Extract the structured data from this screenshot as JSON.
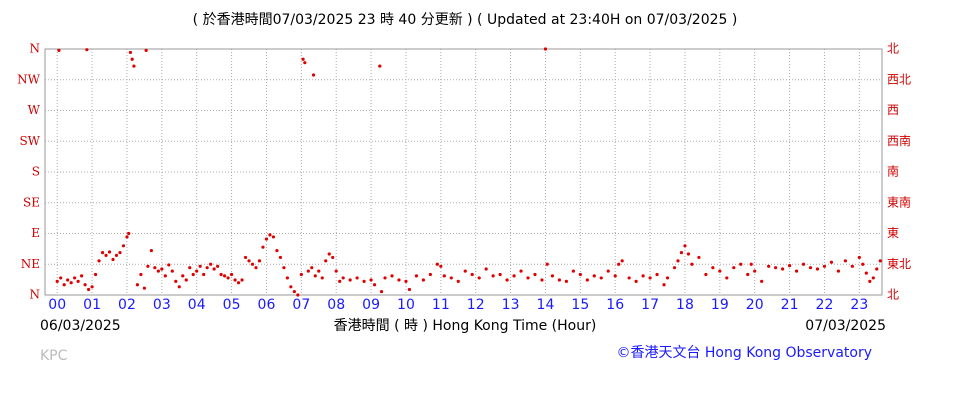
{
  "chart_data": {
    "type": "scatter",
    "title": "( 於香港時間07/03/2025 23 時 40 分更新 ) ( Updated at 23:40H on 07/03/2025 )",
    "x_label": "香港時間 ( 時 )  Hong Kong Time (Hour)",
    "date_start": "06/03/2025",
    "date_end": "07/03/2025",
    "credit": "KPC",
    "source": "©香港天文台 Hong Kong Observatory",
    "xlim": [
      -0.35,
      23.65
    ],
    "ylim": [
      0,
      360
    ],
    "y2lim": [
      0,
      360
    ],
    "grid": true,
    "xticks": [
      {
        "value": 0,
        "label": "00"
      },
      {
        "value": 1,
        "label": "01"
      },
      {
        "value": 2,
        "label": "02"
      },
      {
        "value": 3,
        "label": "03"
      },
      {
        "value": 4,
        "label": "04"
      },
      {
        "value": 5,
        "label": "05"
      },
      {
        "value": 6,
        "label": "06"
      },
      {
        "value": 7,
        "label": "07"
      },
      {
        "value": 8,
        "label": "08"
      },
      {
        "value": 9,
        "label": "09"
      },
      {
        "value": 10,
        "label": "10"
      },
      {
        "value": 11,
        "label": "11"
      },
      {
        "value": 12,
        "label": "12"
      },
      {
        "value": 13,
        "label": "13"
      },
      {
        "value": 14,
        "label": "14"
      },
      {
        "value": 15,
        "label": "15"
      },
      {
        "value": 16,
        "label": "16"
      },
      {
        "value": 17,
        "label": "17"
      },
      {
        "value": 18,
        "label": "18"
      },
      {
        "value": 19,
        "label": "19"
      },
      {
        "value": 20,
        "label": "20"
      },
      {
        "value": 21,
        "label": "21"
      },
      {
        "value": 22,
        "label": "22"
      },
      {
        "value": 23,
        "label": "23"
      }
    ],
    "yticks": [
      {
        "value": 0,
        "label": "N"
      },
      {
        "value": 45,
        "label": "NE"
      },
      {
        "value": 90,
        "label": "E"
      },
      {
        "value": 135,
        "label": "SE"
      },
      {
        "value": 180,
        "label": "S"
      },
      {
        "value": 225,
        "label": "SW"
      },
      {
        "value": 270,
        "label": "W"
      },
      {
        "value": 315,
        "label": "NW"
      },
      {
        "value": 360,
        "label": "N"
      }
    ],
    "y2ticks": [
      {
        "value": 0,
        "label": "北"
      },
      {
        "value": 45,
        "label": "東北"
      },
      {
        "value": 90,
        "label": "東"
      },
      {
        "value": 135,
        "label": "東南"
      },
      {
        "value": 180,
        "label": "南"
      },
      {
        "value": 225,
        "label": "西南"
      },
      {
        "value": 270,
        "label": "西"
      },
      {
        "value": 315,
        "label": "西北"
      },
      {
        "value": 360,
        "label": "北"
      }
    ],
    "x": [
      0.0,
      0.05,
      0.1,
      0.2,
      0.3,
      0.4,
      0.5,
      0.6,
      0.7,
      0.8,
      0.85,
      0.9,
      1.0,
      1.1,
      1.2,
      1.3,
      1.4,
      1.5,
      1.6,
      1.7,
      1.8,
      1.9,
      2.0,
      2.05,
      2.1,
      2.15,
      2.2,
      2.3,
      2.4,
      2.5,
      2.55,
      2.6,
      2.7,
      2.8,
      2.9,
      3.0,
      3.1,
      3.2,
      3.3,
      3.4,
      3.5,
      3.6,
      3.7,
      3.8,
      3.9,
      4.0,
      4.1,
      4.2,
      4.3,
      4.4,
      4.5,
      4.6,
      4.7,
      4.8,
      4.9,
      5.0,
      5.1,
      5.2,
      5.3,
      5.4,
      5.5,
      5.6,
      5.7,
      5.8,
      5.9,
      6.0,
      6.1,
      6.2,
      6.3,
      6.4,
      6.5,
      6.6,
      6.7,
      6.8,
      6.9,
      7.0,
      7.05,
      7.1,
      7.2,
      7.3,
      7.35,
      7.4,
      7.5,
      7.6,
      7.7,
      7.8,
      7.9,
      8.0,
      8.1,
      8.2,
      8.4,
      8.6,
      8.8,
      9.0,
      9.1,
      9.25,
      9.3,
      9.4,
      9.6,
      9.8,
      10.0,
      10.1,
      10.3,
      10.5,
      10.7,
      10.9,
      11.0,
      11.1,
      11.3,
      11.5,
      11.7,
      11.9,
      12.1,
      12.3,
      12.5,
      12.7,
      12.9,
      13.1,
      13.3,
      13.5,
      13.7,
      13.9,
      14.0,
      14.05,
      14.2,
      14.4,
      14.6,
      14.8,
      15.0,
      15.2,
      15.4,
      15.6,
      15.8,
      16.0,
      16.1,
      16.2,
      16.4,
      16.6,
      16.8,
      17.0,
      17.2,
      17.4,
      17.5,
      17.7,
      17.8,
      17.9,
      18.0,
      18.1,
      18.2,
      18.4,
      18.6,
      18.8,
      19.0,
      19.2,
      19.4,
      19.6,
      19.8,
      19.9,
      20.0,
      20.2,
      20.4,
      20.6,
      20.8,
      21.0,
      21.2,
      21.4,
      21.6,
      21.8,
      22.0,
      22.2,
      22.4,
      22.6,
      22.8,
      23.0,
      23.1,
      23.2,
      23.3,
      23.4,
      23.5,
      23.6
    ],
    "series": [
      {
        "color": "#e00000",
        "values": [
          20,
          358,
          25,
          15,
          22,
          18,
          25,
          20,
          28,
          15,
          359,
          8,
          12,
          30,
          50,
          62,
          58,
          63,
          52,
          58,
          62,
          72,
          85,
          90,
          355,
          345,
          335,
          15,
          30,
          10,
          358,
          42,
          65,
          40,
          35,
          38,
          28,
          44,
          35,
          20,
          12,
          28,
          22,
          40,
          30,
          35,
          42,
          30,
          40,
          45,
          38,
          42,
          30,
          28,
          25,
          30,
          22,
          18,
          22,
          55,
          50,
          45,
          40,
          50,
          70,
          82,
          88,
          85,
          65,
          55,
          40,
          25,
          12,
          5,
          0,
          30,
          345,
          340,
          35,
          40,
          322,
          28,
          35,
          25,
          50,
          60,
          55,
          35,
          20,
          25,
          22,
          25,
          20,
          22,
          15,
          335,
          5,
          25,
          28,
          22,
          20,
          8,
          28,
          22,
          30,
          45,
          42,
          28,
          25,
          20,
          35,
          30,
          25,
          38,
          28,
          30,
          22,
          28,
          35,
          25,
          30,
          22,
          360,
          45,
          28,
          22,
          20,
          35,
          30,
          22,
          28,
          25,
          35,
          28,
          45,
          50,
          25,
          20,
          28,
          25,
          30,
          15,
          25,
          40,
          50,
          62,
          72,
          60,
          45,
          55,
          30,
          40,
          35,
          25,
          40,
          45,
          30,
          45,
          35,
          20,
          42,
          40,
          38,
          43,
          35,
          45,
          40,
          38,
          42,
          48,
          35,
          50,
          42,
          55,
          45,
          32,
          20,
          25,
          38,
          50
        ]
      }
    ]
  }
}
